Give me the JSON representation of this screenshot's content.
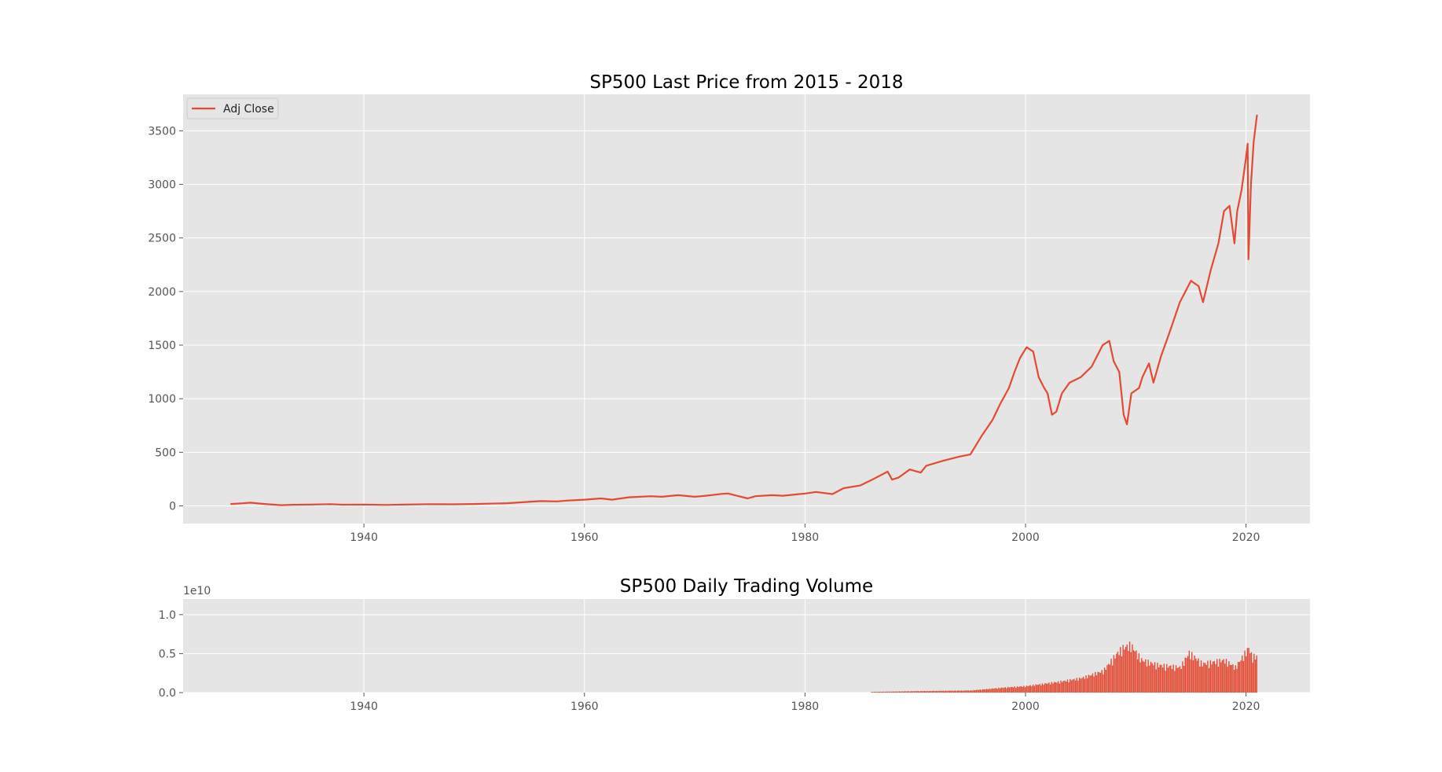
{
  "figure": {
    "background": "#ffffff",
    "axes_background": "#e5e5e5",
    "grid_color": "#ffffff",
    "line_color": "#e24a33"
  },
  "chart_data": [
    {
      "type": "line",
      "title": "SP500 Last Price from 2015 - 2018",
      "xlabel": "",
      "ylabel": "",
      "xlim": [
        1923.6,
        2025.8
      ],
      "ylim": [
        -165,
        3840
      ],
      "grid": true,
      "legend": {
        "position": "top-left",
        "entries": [
          "Adj Close"
        ]
      },
      "x_ticks": [
        1940,
        1960,
        1980,
        2000,
        2020
      ],
      "x_tick_labels": [
        "1940",
        "1960",
        "1980",
        "2000",
        "2020"
      ],
      "y_ticks": [
        0,
        500,
        1000,
        1500,
        2000,
        2500,
        3000,
        3500
      ],
      "y_tick_labels": [
        "0",
        "500",
        "1000",
        "1500",
        "2000",
        "2500",
        "3000",
        "3500"
      ],
      "series": [
        {
          "name": "Adj Close",
          "x": [
            1927.9,
            1929.0,
            1929.7,
            1930.5,
            1931.5,
            1932.5,
            1933.5,
            1935.0,
            1937.0,
            1938.0,
            1940.0,
            1942.0,
            1943.5,
            1946.0,
            1948.0,
            1950.0,
            1953.0,
            1956.0,
            1957.5,
            1958.5,
            1960.0,
            1961.5,
            1962.5,
            1964.0,
            1966.0,
            1967.0,
            1968.5,
            1970.0,
            1971.0,
            1972.5,
            1973.0,
            1974.0,
            1974.8,
            1975.5,
            1977.0,
            1978.0,
            1980.0,
            1981.0,
            1982.5,
            1983.5,
            1985.0,
            1986.0,
            1987.5,
            1987.9,
            1988.5,
            1989.5,
            1990.5,
            1991.0,
            1992.5,
            1994.0,
            1995.0,
            1996.0,
            1997.0,
            1997.7,
            1998.5,
            1999.0,
            1999.5,
            2000.1,
            2000.7,
            2001.2,
            2001.7,
            2002.0,
            2002.4,
            2002.8,
            2003.3,
            2004.0,
            2005.0,
            2006.0,
            2007.0,
            2007.6,
            2008.0,
            2008.5,
            2008.9,
            2009.2,
            2009.6,
            2010.3,
            2010.6,
            2011.2,
            2011.6,
            2012.3,
            2013.0,
            2014.0,
            2015.0,
            2015.7,
            2016.1,
            2016.8,
            2017.5,
            2018.0,
            2018.5,
            2018.95,
            2019.2,
            2019.6,
            2020.0,
            2020.15,
            2020.22,
            2020.45,
            2020.7,
            2021.0
          ],
          "values": [
            18,
            24,
            30,
            22,
            14,
            7,
            10,
            12,
            16,
            11,
            12,
            9,
            12,
            16,
            15,
            18,
            25,
            45,
            42,
            50,
            58,
            70,
            58,
            80,
            90,
            85,
            100,
            85,
            95,
            112,
            116,
            90,
            70,
            90,
            100,
            95,
            115,
            130,
            110,
            165,
            190,
            240,
            320,
            245,
            265,
            340,
            310,
            375,
            420,
            460,
            480,
            650,
            800,
            950,
            1100,
            1250,
            1380,
            1480,
            1440,
            1200,
            1100,
            1050,
            850,
            880,
            1050,
            1150,
            1200,
            1300,
            1500,
            1540,
            1350,
            1250,
            850,
            760,
            1050,
            1100,
            1200,
            1330,
            1150,
            1400,
            1600,
            1900,
            2100,
            2050,
            1900,
            2200,
            2450,
            2750,
            2800,
            2450,
            2750,
            2950,
            3250,
            3380,
            2300,
            3000,
            3400,
            3650
          ]
        }
      ]
    },
    {
      "type": "bar",
      "title": "SP500 Daily Trading Volume",
      "xlabel": "",
      "ylabel": "",
      "offset_label": "1e10",
      "xlim": [
        1923.6,
        2025.8
      ],
      "ylim": [
        0,
        1.2
      ],
      "grid": true,
      "x_ticks": [
        1940,
        1960,
        1980,
        2000,
        2020
      ],
      "x_tick_labels": [
        "1940",
        "1960",
        "1980",
        "2000",
        "2020"
      ],
      "y_ticks": [
        0,
        0.5,
        1.0
      ],
      "y_tick_labels": [
        "0.0",
        "0.5",
        "1.0"
      ],
      "series": [
        {
          "name": "Volume",
          "x": [
            1986,
            1990,
            1995,
            1998,
            2000,
            2003,
            2005,
            2007,
            2008.3,
            2008.8,
            2009.5,
            2010.5,
            2012,
            2014,
            2014.8,
            2016,
            2018,
            2019,
            2020.2,
            2020.5,
            2021
          ],
          "values": [
            0.01,
            0.02,
            0.03,
            0.07,
            0.09,
            0.15,
            0.2,
            0.3,
            0.55,
            0.62,
            0.66,
            0.45,
            0.38,
            0.35,
            0.55,
            0.4,
            0.45,
            0.35,
            0.62,
            0.5,
            0.5
          ]
        }
      ]
    }
  ]
}
